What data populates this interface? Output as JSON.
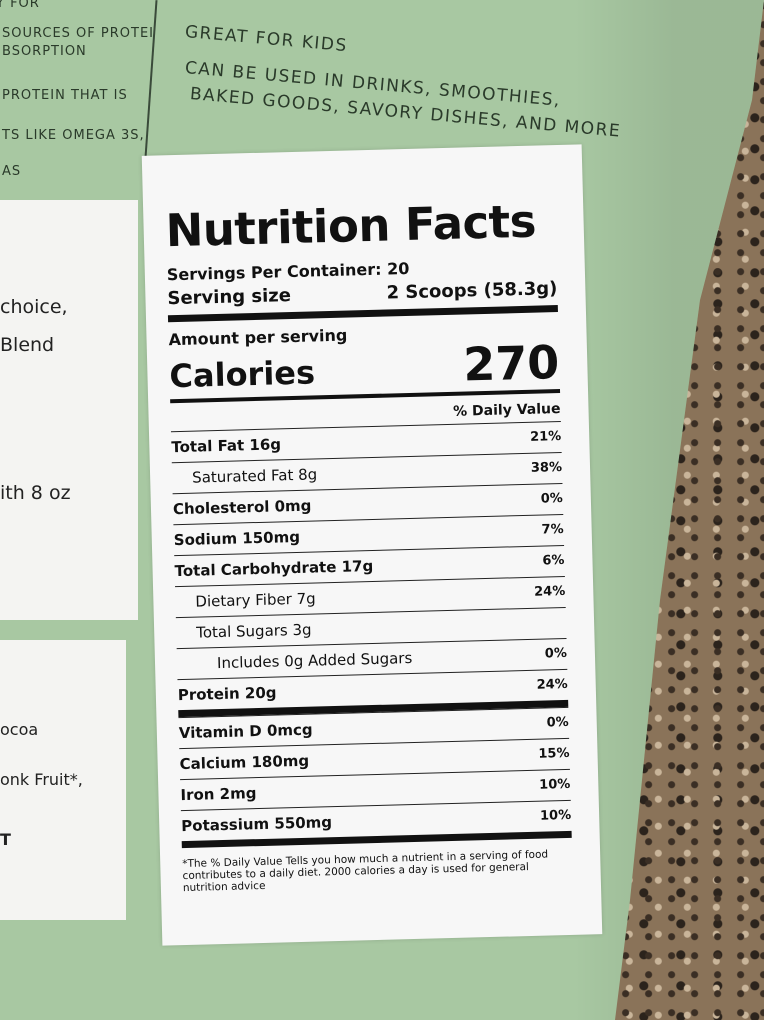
{
  "package": {
    "top_left_lines": [
      "Y FOR",
      "SOURCES OF PROTEI",
      "BSORPTION",
      "PROTEIN THAT IS",
      "TS LIKE OMEGA 3S,",
      "AS"
    ],
    "top_right_bullets": [
      "GREAT FOR KIDS",
      "CAN BE USED IN DRINKS, SMOOTHIES,",
      "BAKED GOODS, SAVORY DISHES, AND MORE"
    ],
    "left_panel_1": [
      "choice,",
      "Blend",
      "ith 8 oz"
    ],
    "left_panel_2": [
      "ocoa",
      "onk Fruit*,",
      "T"
    ]
  },
  "label": {
    "title": "Nutrition Facts",
    "servings_per_container": "Servings Per Container: 20",
    "serving_size_label": "Serving size",
    "serving_size_value": "2 Scoops (58.3g)",
    "amount_per_serving": "Amount per serving",
    "calories_label": "Calories",
    "calories_value": 270,
    "daily_value_header": "% Daily Value",
    "rows": [
      {
        "name": "Total Fat 16g",
        "dv": "21%"
      },
      {
        "name": "Saturated Fat 8g",
        "dv": "38%"
      },
      {
        "name": "Cholesterol 0mg",
        "dv": "0%"
      },
      {
        "name": "Sodium 150mg",
        "dv": "7%"
      },
      {
        "name": "Total Carbohydrate 17g",
        "dv": "6%"
      },
      {
        "name": "Dietary Fiber 7g",
        "dv": "24%"
      },
      {
        "name": "Total Sugars  3g",
        "dv": null
      },
      {
        "name": "Includes 0g Added Sugars",
        "dv": "0%"
      },
      {
        "name": "Protein 20g",
        "dv": "24%"
      },
      {
        "name": "Vitamin D 0mcg",
        "dv": "0%"
      },
      {
        "name": "Calcium 180mg",
        "dv": "15%"
      },
      {
        "name": "Iron 2mg",
        "dv": "10%"
      },
      {
        "name": "Potassium 550mg",
        "dv": "10%"
      }
    ],
    "footnote": "*The % Daily Value Tells you how much a nutrient in a serving of food contributes to a daily diet. 2000 calories a day is used for general nutrition advice"
  }
}
